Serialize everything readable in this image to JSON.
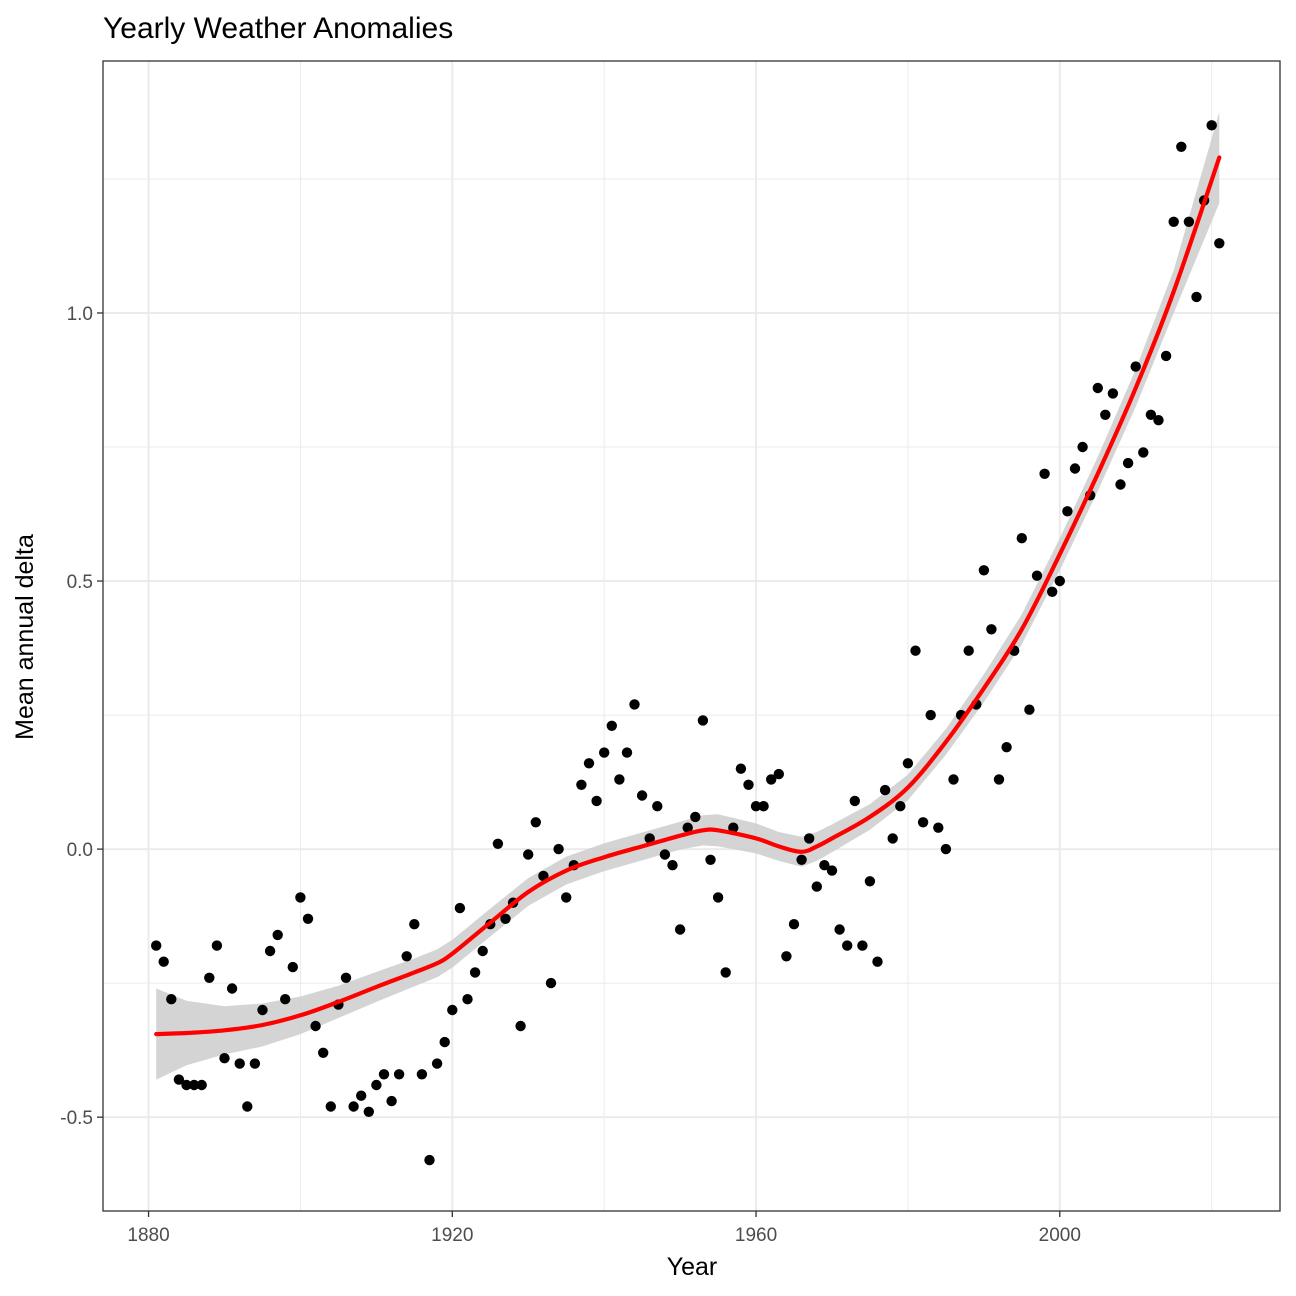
{
  "chart_data": {
    "type": "scatter",
    "title": "Yearly Weather Anomalies",
    "xlabel": "Year",
    "ylabel": "Mean annual delta",
    "xlim": [
      1874,
      2029
    ],
    "ylim": [
      -0.675,
      1.47
    ],
    "x_ticks": [
      1880,
      1920,
      1960,
      2000
    ],
    "x_tick_labels": [
      "1880",
      "1920",
      "1960",
      "2000"
    ],
    "y_ticks": [
      -0.5,
      0.0,
      0.5,
      1.0
    ],
    "y_tick_labels": [
      "-0.5",
      "0.0",
      "0.5",
      "1.0"
    ],
    "grid": true,
    "legend": "none",
    "colors": {
      "points": "#000000",
      "smooth_line": "#ff0000",
      "confidence_band": "#cccccc",
      "grid": "#ebebeb",
      "panel_border": "#333333"
    },
    "series": [
      {
        "kind": "points",
        "x": [
          1881,
          1882,
          1883,
          1884,
          1885,
          1886,
          1887,
          1888,
          1889,
          1890,
          1891,
          1892,
          1893,
          1894,
          1895,
          1896,
          1897,
          1898,
          1899,
          1900,
          1901,
          1902,
          1903,
          1904,
          1905,
          1906,
          1907,
          1908,
          1909,
          1910,
          1911,
          1912,
          1913,
          1914,
          1915,
          1916,
          1917,
          1918,
          1919,
          1920,
          1921,
          1922,
          1923,
          1924,
          1925,
          1926,
          1927,
          1928,
          1929,
          1930,
          1931,
          1932,
          1933,
          1934,
          1935,
          1936,
          1937,
          1938,
          1939,
          1940,
          1941,
          1942,
          1943,
          1944,
          1945,
          1946,
          1947,
          1948,
          1949,
          1950,
          1951,
          1952,
          1953,
          1954,
          1955,
          1956,
          1957,
          1958,
          1959,
          1960,
          1961,
          1962,
          1963,
          1964,
          1965,
          1966,
          1967,
          1968,
          1969,
          1970,
          1971,
          1972,
          1973,
          1974,
          1975,
          1976,
          1977,
          1978,
          1979,
          1980,
          1981,
          1982,
          1983,
          1984,
          1985,
          1986,
          1987,
          1988,
          1989,
          1990,
          1991,
          1992,
          1993,
          1994,
          1995,
          1996,
          1997,
          1998,
          1999,
          2000,
          2001,
          2002,
          2003,
          2004,
          2005,
          2006,
          2007,
          2008,
          2009,
          2010,
          2011,
          2012,
          2013,
          2014,
          2015,
          2016,
          2017,
          2018,
          2019,
          2020,
          2021
        ],
        "y": [
          -0.18,
          -0.21,
          -0.28,
          -0.43,
          -0.44,
          -0.44,
          -0.44,
          -0.24,
          -0.18,
          -0.39,
          -0.26,
          -0.4,
          -0.48,
          -0.4,
          -0.3,
          -0.19,
          -0.16,
          -0.28,
          -0.22,
          -0.09,
          -0.13,
          -0.33,
          -0.38,
          -0.48,
          -0.29,
          -0.24,
          -0.48,
          -0.46,
          -0.49,
          -0.44,
          -0.42,
          -0.47,
          -0.42,
          -0.2,
          -0.14,
          -0.42,
          -0.58,
          -0.4,
          -0.36,
          -0.3,
          -0.11,
          -0.28,
          -0.23,
          -0.19,
          -0.14,
          0.01,
          -0.13,
          -0.1,
          -0.33,
          -0.01,
          0.05,
          -0.05,
          -0.25,
          0.0,
          -0.09,
          -0.03,
          0.12,
          0.16,
          0.09,
          0.18,
          0.23,
          0.13,
          0.18,
          0.27,
          0.1,
          0.02,
          0.08,
          -0.01,
          -0.03,
          -0.15,
          0.04,
          0.06,
          0.24,
          -0.02,
          -0.09,
          -0.23,
          0.04,
          0.15,
          0.12,
          0.08,
          0.08,
          0.13,
          0.14,
          -0.2,
          -0.14,
          -0.02,
          0.02,
          -0.07,
          -0.03,
          -0.04,
          -0.15,
          -0.18,
          0.09,
          -0.18,
          -0.06,
          -0.21,
          0.11,
          0.02,
          0.08,
          0.16,
          0.37,
          0.05,
          0.25,
          0.04,
          0.0,
          0.13,
          0.25,
          0.37,
          0.27,
          0.52,
          0.41,
          0.13,
          0.19,
          0.37,
          0.58,
          0.26,
          0.51,
          0.7,
          0.48,
          0.5,
          0.63,
          0.71,
          0.75,
          0.66,
          0.86,
          0.81,
          0.85,
          0.68,
          0.72,
          0.9,
          0.74,
          0.81,
          0.8,
          0.92,
          1.17,
          1.31,
          1.17,
          1.03,
          1.21,
          1.35,
          1.13
        ]
      },
      {
        "kind": "smooth",
        "x": [
          1881,
          1885,
          1890,
          1895,
          1900,
          1905,
          1910,
          1915,
          1918,
          1920,
          1925,
          1930,
          1935,
          1940,
          1945,
          1950,
          1953,
          1955,
          1960,
          1963,
          1966,
          1968,
          1970,
          1975,
          1980,
          1985,
          1990,
          1995,
          2000,
          2005,
          2010,
          2015,
          2021
        ],
        "y": [
          -0.345,
          -0.343,
          -0.338,
          -0.328,
          -0.31,
          -0.285,
          -0.257,
          -0.23,
          -0.213,
          -0.195,
          -0.137,
          -0.08,
          -0.04,
          -0.015,
          0.005,
          0.025,
          0.035,
          0.035,
          0.02,
          0.005,
          -0.005,
          0.005,
          0.02,
          0.06,
          0.115,
          0.2,
          0.3,
          0.41,
          0.55,
          0.7,
          0.86,
          1.04,
          1.29
        ],
        "band_half_width": [
          0.085,
          0.06,
          0.045,
          0.04,
          0.035,
          0.03,
          0.028,
          0.026,
          0.026,
          0.026,
          0.026,
          0.026,
          0.026,
          0.026,
          0.026,
          0.026,
          0.028,
          0.03,
          0.028,
          0.027,
          0.028,
          0.027,
          0.026,
          0.024,
          0.024,
          0.024,
          0.026,
          0.028,
          0.03,
          0.032,
          0.035,
          0.04,
          0.085
        ]
      }
    ]
  }
}
